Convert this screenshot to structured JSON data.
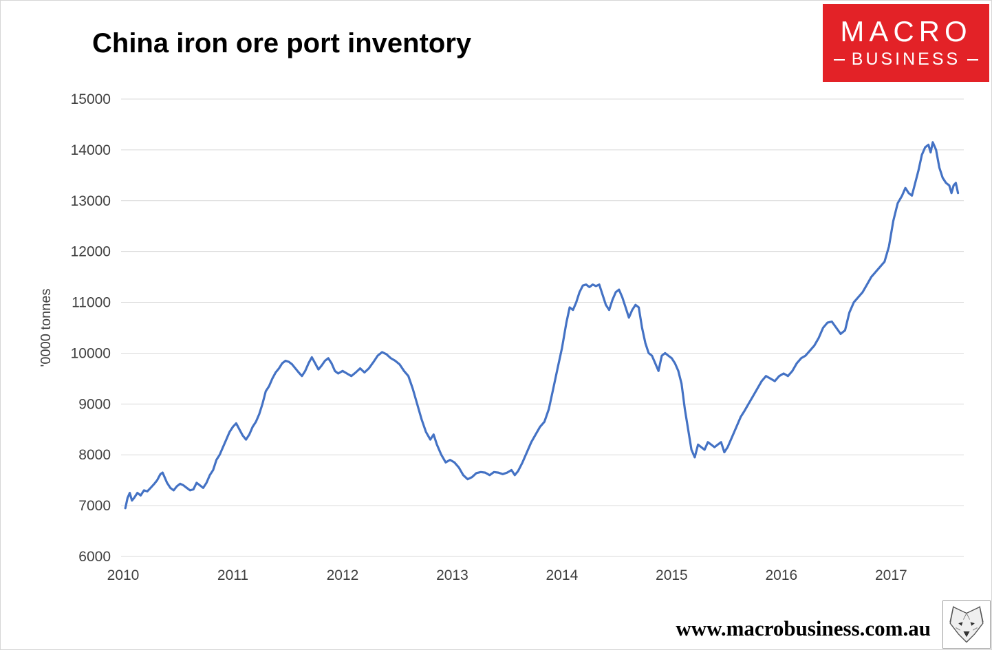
{
  "title": "China iron ore port inventory",
  "logo": {
    "line1": "MACRO",
    "line2": "BUSINESS",
    "bg_color": "#e32227",
    "text_color": "#ffffff"
  },
  "footer": {
    "url": "www.macrobusiness.com.au"
  },
  "chart_data": {
    "type": "line",
    "title": "China iron ore port inventory",
    "xlabel": "",
    "ylabel": "'0000 tonnes",
    "grid": true,
    "legend": "none",
    "line_color": "#4472C4",
    "gridline_color": "#d9d9d9",
    "xlim": [
      2010,
      2017.65
    ],
    "ylim": [
      6000,
      15000
    ],
    "x_ticks": [
      2010,
      2011,
      2012,
      2013,
      2014,
      2015,
      2016,
      2017
    ],
    "y_ticks": [
      6000,
      7000,
      8000,
      9000,
      10000,
      11000,
      12000,
      13000,
      14000,
      15000
    ],
    "series": [
      {
        "name": "China iron ore port inventory ('0000 tonnes)",
        "points": [
          [
            2010.02,
            6950
          ],
          [
            2010.04,
            7150
          ],
          [
            2010.06,
            7250
          ],
          [
            2010.08,
            7100
          ],
          [
            2010.1,
            7150
          ],
          [
            2010.13,
            7250
          ],
          [
            2010.16,
            7200
          ],
          [
            2010.19,
            7300
          ],
          [
            2010.22,
            7280
          ],
          [
            2010.25,
            7350
          ],
          [
            2010.28,
            7420
          ],
          [
            2010.31,
            7500
          ],
          [
            2010.34,
            7620
          ],
          [
            2010.36,
            7650
          ],
          [
            2010.38,
            7550
          ],
          [
            2010.4,
            7450
          ],
          [
            2010.43,
            7350
          ],
          [
            2010.46,
            7300
          ],
          [
            2010.49,
            7380
          ],
          [
            2010.52,
            7430
          ],
          [
            2010.55,
            7400
          ],
          [
            2010.58,
            7350
          ],
          [
            2010.61,
            7300
          ],
          [
            2010.64,
            7320
          ],
          [
            2010.67,
            7450
          ],
          [
            2010.7,
            7400
          ],
          [
            2010.73,
            7350
          ],
          [
            2010.76,
            7450
          ],
          [
            2010.79,
            7600
          ],
          [
            2010.82,
            7700
          ],
          [
            2010.85,
            7900
          ],
          [
            2010.88,
            8000
          ],
          [
            2010.91,
            8150
          ],
          [
            2010.94,
            8300
          ],
          [
            2010.97,
            8450
          ],
          [
            2011.0,
            8550
          ],
          [
            2011.03,
            8620
          ],
          [
            2011.06,
            8500
          ],
          [
            2011.09,
            8380
          ],
          [
            2011.12,
            8300
          ],
          [
            2011.15,
            8400
          ],
          [
            2011.18,
            8550
          ],
          [
            2011.21,
            8650
          ],
          [
            2011.24,
            8800
          ],
          [
            2011.27,
            9000
          ],
          [
            2011.3,
            9250
          ],
          [
            2011.33,
            9350
          ],
          [
            2011.36,
            9500
          ],
          [
            2011.39,
            9620
          ],
          [
            2011.42,
            9700
          ],
          [
            2011.45,
            9800
          ],
          [
            2011.48,
            9850
          ],
          [
            2011.51,
            9830
          ],
          [
            2011.54,
            9780
          ],
          [
            2011.57,
            9700
          ],
          [
            2011.6,
            9620
          ],
          [
            2011.63,
            9550
          ],
          [
            2011.66,
            9650
          ],
          [
            2011.69,
            9800
          ],
          [
            2011.72,
            9920
          ],
          [
            2011.75,
            9800
          ],
          [
            2011.78,
            9680
          ],
          [
            2011.81,
            9760
          ],
          [
            2011.84,
            9850
          ],
          [
            2011.87,
            9900
          ],
          [
            2011.9,
            9800
          ],
          [
            2011.93,
            9650
          ],
          [
            2011.96,
            9600
          ],
          [
            2012.0,
            9650
          ],
          [
            2012.04,
            9600
          ],
          [
            2012.08,
            9550
          ],
          [
            2012.12,
            9620
          ],
          [
            2012.16,
            9700
          ],
          [
            2012.2,
            9620
          ],
          [
            2012.24,
            9700
          ],
          [
            2012.28,
            9820
          ],
          [
            2012.32,
            9950
          ],
          [
            2012.36,
            10020
          ],
          [
            2012.4,
            9980
          ],
          [
            2012.44,
            9900
          ],
          [
            2012.48,
            9850
          ],
          [
            2012.52,
            9780
          ],
          [
            2012.56,
            9650
          ],
          [
            2012.6,
            9550
          ],
          [
            2012.64,
            9300
          ],
          [
            2012.68,
            9000
          ],
          [
            2012.72,
            8700
          ],
          [
            2012.76,
            8450
          ],
          [
            2012.8,
            8300
          ],
          [
            2012.83,
            8400
          ],
          [
            2012.86,
            8200
          ],
          [
            2012.9,
            8000
          ],
          [
            2012.94,
            7850
          ],
          [
            2012.98,
            7900
          ],
          [
            2013.02,
            7850
          ],
          [
            2013.06,
            7750
          ],
          [
            2013.1,
            7600
          ],
          [
            2013.14,
            7520
          ],
          [
            2013.18,
            7560
          ],
          [
            2013.22,
            7640
          ],
          [
            2013.26,
            7660
          ],
          [
            2013.3,
            7650
          ],
          [
            2013.34,
            7600
          ],
          [
            2013.38,
            7660
          ],
          [
            2013.42,
            7650
          ],
          [
            2013.46,
            7620
          ],
          [
            2013.5,
            7650
          ],
          [
            2013.54,
            7700
          ],
          [
            2013.57,
            7600
          ],
          [
            2013.6,
            7680
          ],
          [
            2013.64,
            7850
          ],
          [
            2013.68,
            8050
          ],
          [
            2013.72,
            8250
          ],
          [
            2013.76,
            8400
          ],
          [
            2013.8,
            8550
          ],
          [
            2013.84,
            8650
          ],
          [
            2013.88,
            8900
          ],
          [
            2013.92,
            9300
          ],
          [
            2013.96,
            9700
          ],
          [
            2014.0,
            10100
          ],
          [
            2014.04,
            10600
          ],
          [
            2014.07,
            10900
          ],
          [
            2014.1,
            10850
          ],
          [
            2014.13,
            11000
          ],
          [
            2014.16,
            11200
          ],
          [
            2014.19,
            11330
          ],
          [
            2014.22,
            11350
          ],
          [
            2014.25,
            11300
          ],
          [
            2014.28,
            11350
          ],
          [
            2014.31,
            11320
          ],
          [
            2014.34,
            11350
          ],
          [
            2014.37,
            11150
          ],
          [
            2014.4,
            10950
          ],
          [
            2014.43,
            10850
          ],
          [
            2014.46,
            11050
          ],
          [
            2014.49,
            11200
          ],
          [
            2014.52,
            11250
          ],
          [
            2014.55,
            11100
          ],
          [
            2014.58,
            10900
          ],
          [
            2014.61,
            10700
          ],
          [
            2014.64,
            10850
          ],
          [
            2014.67,
            10950
          ],
          [
            2014.7,
            10900
          ],
          [
            2014.73,
            10500
          ],
          [
            2014.76,
            10200
          ],
          [
            2014.79,
            10000
          ],
          [
            2014.82,
            9950
          ],
          [
            2014.85,
            9800
          ],
          [
            2014.88,
            9650
          ],
          [
            2014.91,
            9950
          ],
          [
            2014.94,
            10000
          ],
          [
            2014.97,
            9950
          ],
          [
            2015.0,
            9900
          ],
          [
            2015.03,
            9800
          ],
          [
            2015.06,
            9650
          ],
          [
            2015.09,
            9400
          ],
          [
            2015.12,
            8900
          ],
          [
            2015.15,
            8500
          ],
          [
            2015.18,
            8100
          ],
          [
            2015.21,
            7950
          ],
          [
            2015.24,
            8200
          ],
          [
            2015.27,
            8150
          ],
          [
            2015.3,
            8100
          ],
          [
            2015.33,
            8250
          ],
          [
            2015.36,
            8200
          ],
          [
            2015.39,
            8150
          ],
          [
            2015.42,
            8200
          ],
          [
            2015.45,
            8250
          ],
          [
            2015.48,
            8050
          ],
          [
            2015.51,
            8150
          ],
          [
            2015.54,
            8300
          ],
          [
            2015.57,
            8450
          ],
          [
            2015.6,
            8600
          ],
          [
            2015.63,
            8750
          ],
          [
            2015.66,
            8850
          ],
          [
            2015.7,
            9000
          ],
          [
            2015.74,
            9150
          ],
          [
            2015.78,
            9300
          ],
          [
            2015.82,
            9450
          ],
          [
            2015.86,
            9550
          ],
          [
            2015.9,
            9500
          ],
          [
            2015.94,
            9450
          ],
          [
            2015.98,
            9550
          ],
          [
            2016.02,
            9600
          ],
          [
            2016.06,
            9550
          ],
          [
            2016.1,
            9650
          ],
          [
            2016.14,
            9800
          ],
          [
            2016.18,
            9900
          ],
          [
            2016.22,
            9950
          ],
          [
            2016.26,
            10050
          ],
          [
            2016.3,
            10150
          ],
          [
            2016.34,
            10300
          ],
          [
            2016.38,
            10500
          ],
          [
            2016.42,
            10600
          ],
          [
            2016.46,
            10620
          ],
          [
            2016.5,
            10500
          ],
          [
            2016.54,
            10380
          ],
          [
            2016.58,
            10450
          ],
          [
            2016.62,
            10800
          ],
          [
            2016.66,
            11000
          ],
          [
            2016.7,
            11100
          ],
          [
            2016.74,
            11200
          ],
          [
            2016.78,
            11350
          ],
          [
            2016.82,
            11500
          ],
          [
            2016.86,
            11600
          ],
          [
            2016.9,
            11700
          ],
          [
            2016.94,
            11800
          ],
          [
            2016.98,
            12100
          ],
          [
            2017.02,
            12600
          ],
          [
            2017.06,
            12950
          ],
          [
            2017.1,
            13100
          ],
          [
            2017.13,
            13250
          ],
          [
            2017.16,
            13150
          ],
          [
            2017.19,
            13100
          ],
          [
            2017.22,
            13350
          ],
          [
            2017.25,
            13600
          ],
          [
            2017.28,
            13900
          ],
          [
            2017.31,
            14050
          ],
          [
            2017.34,
            14100
          ],
          [
            2017.36,
            13950
          ],
          [
            2017.38,
            14150
          ],
          [
            2017.41,
            14000
          ],
          [
            2017.44,
            13650
          ],
          [
            2017.47,
            13450
          ],
          [
            2017.5,
            13350
          ],
          [
            2017.53,
            13300
          ],
          [
            2017.55,
            13150
          ],
          [
            2017.57,
            13300
          ],
          [
            2017.59,
            13350
          ],
          [
            2017.61,
            13150
          ]
        ]
      }
    ]
  }
}
